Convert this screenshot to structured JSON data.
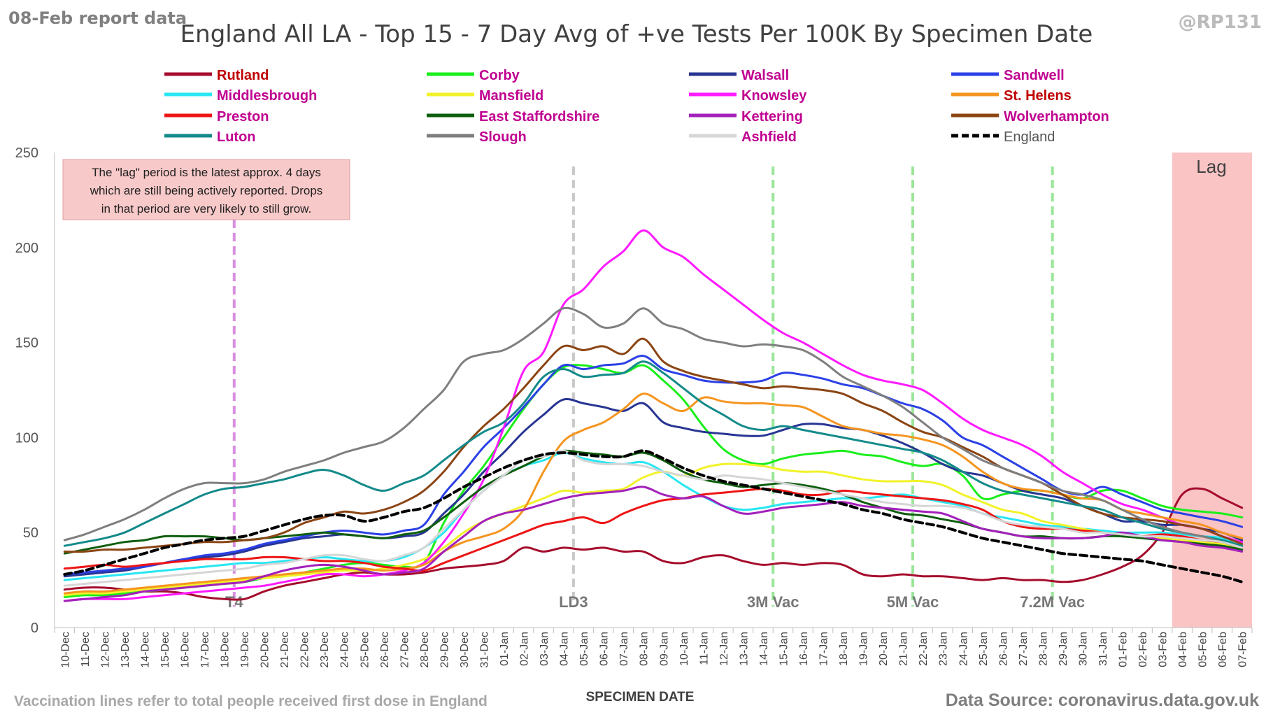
{
  "header": {
    "report_date": "08-Feb report data",
    "handle": "@RP131"
  },
  "footer": {
    "note": "Vaccination lines refer to total people received first dose in England",
    "source": "Data Source: coronavirus.data.gov.uk"
  },
  "infobox": {
    "lines": [
      "The \"lag\" period is the latest approx. 4 days",
      "which are still being actively reported.  Drops",
      "in that period are very likely to still grow."
    ]
  },
  "lag_label": "Lag",
  "chart_data": {
    "type": "line",
    "title": "England All LA - Top 15 - 7 Day Avg of +ve Tests Per 100K By Specimen Date",
    "xlabel": "SPECIMEN DATE",
    "ylabel": "",
    "ylim": [
      0,
      250
    ],
    "yticks": [
      0,
      50,
      100,
      150,
      200,
      250
    ],
    "grid": false,
    "legend_position": "top",
    "categories": [
      "10-Dec",
      "11-Dec",
      "12-Dec",
      "13-Dec",
      "14-Dec",
      "15-Dec",
      "16-Dec",
      "17-Dec",
      "18-Dec",
      "19-Dec",
      "20-Dec",
      "21-Dec",
      "22-Dec",
      "23-Dec",
      "24-Dec",
      "25-Dec",
      "26-Dec",
      "27-Dec",
      "28-Dec",
      "29-Dec",
      "30-Dec",
      "31-Dec",
      "01-Jan",
      "02-Jan",
      "03-Jan",
      "04-Jan",
      "05-Jan",
      "06-Jan",
      "07-Jan",
      "08-Jan",
      "09-Jan",
      "10-Jan",
      "11-Jan",
      "12-Jan",
      "13-Jan",
      "14-Jan",
      "15-Jan",
      "16-Jan",
      "17-Jan",
      "18-Jan",
      "19-Jan",
      "20-Jan",
      "21-Jan",
      "22-Jan",
      "23-Jan",
      "24-Jan",
      "25-Jan",
      "26-Jan",
      "27-Jan",
      "28-Jan",
      "29-Jan",
      "30-Jan",
      "31-Jan",
      "01-Feb",
      "02-Feb",
      "03-Feb",
      "04-Feb",
      "05-Feb",
      "06-Feb",
      "07-Feb"
    ],
    "lag_start": "04-Feb",
    "annotations": [
      {
        "label": "T4",
        "date": "19-Dec",
        "color": "#d98fe0",
        "text_color": "#777777"
      },
      {
        "label": "LD3",
        "date": "05-Jan",
        "color": "#c8c8c8",
        "text_color": "#777777"
      },
      {
        "label": "3M Vac",
        "date": "15-Jan",
        "color": "#99e699",
        "text_color": "#777777"
      },
      {
        "label": "5M Vac",
        "date": "22-Jan",
        "color": "#99e699",
        "text_color": "#777777"
      },
      {
        "label": "7.2M Vac",
        "date": "29-Jan",
        "color": "#99e699",
        "text_color": "#777777"
      }
    ],
    "series": [
      {
        "name": "Rutland",
        "color": "#a50d2d",
        "text_color": "#c00000",
        "values": [
          20,
          21,
          21,
          20,
          19,
          19,
          18,
          16,
          15,
          15,
          19,
          22,
          24,
          26,
          28,
          29,
          28,
          28,
          29,
          31,
          32,
          33,
          35,
          42,
          40,
          42,
          41,
          42,
          40,
          40,
          35,
          34,
          37,
          38,
          35,
          33,
          34,
          33,
          34,
          33,
          28,
          27,
          28,
          27,
          27,
          26,
          25,
          26,
          25,
          25,
          24,
          25,
          28,
          32,
          38,
          50,
          70,
          73,
          68,
          63
        ]
      },
      {
        "name": "Corby",
        "color": "#1aee1a",
        "text_color": "#c00090",
        "values": [
          16,
          17,
          17,
          18,
          19,
          20,
          21,
          22,
          23,
          24,
          26,
          27,
          29,
          31,
          33,
          34,
          33,
          32,
          34,
          55,
          72,
          85,
          100,
          115,
          128,
          137,
          138,
          136,
          134,
          138,
          130,
          120,
          106,
          94,
          88,
          86,
          89,
          91,
          92,
          93,
          91,
          90,
          87,
          85,
          86,
          80,
          68,
          70,
          72,
          72,
          70,
          68,
          72,
          72,
          68,
          64,
          62,
          61,
          60,
          58
        ]
      },
      {
        "name": "Walsall",
        "color": "#283593",
        "text_color": "#c00090",
        "values": [
          27,
          28,
          29,
          30,
          32,
          34,
          36,
          37,
          38,
          40,
          43,
          45,
          47,
          48,
          49,
          48,
          47,
          48,
          50,
          60,
          70,
          82,
          92,
          103,
          112,
          120,
          118,
          116,
          114,
          118,
          108,
          105,
          103,
          102,
          101,
          101,
          104,
          107,
          107,
          105,
          104,
          101,
          97,
          92,
          86,
          82,
          80,
          76,
          72,
          70,
          68,
          64,
          60,
          56,
          56,
          54,
          54,
          52,
          50,
          46
        ]
      },
      {
        "name": "Sandwell",
        "color": "#2b40e6",
        "text_color": "#c00090",
        "values": [
          28,
          29,
          30,
          31,
          32,
          34,
          36,
          38,
          39,
          41,
          44,
          46,
          48,
          50,
          51,
          50,
          49,
          51,
          54,
          70,
          82,
          95,
          105,
          116,
          128,
          138,
          136,
          138,
          139,
          143,
          136,
          133,
          130,
          129,
          129,
          130,
          134,
          133,
          131,
          128,
          126,
          122,
          118,
          115,
          109,
          100,
          96,
          90,
          84,
          78,
          72,
          70,
          74,
          70,
          66,
          62,
          60,
          58,
          56,
          53
        ]
      },
      {
        "name": "Middlesbrough",
        "color": "#28e6f2",
        "text_color": "#c00090",
        "values": [
          25,
          26,
          27,
          28,
          29,
          30,
          31,
          32,
          33,
          34,
          34,
          35,
          36,
          37,
          36,
          35,
          35,
          37,
          42,
          50,
          62,
          72,
          80,
          85,
          88,
          92,
          89,
          87,
          86,
          87,
          82,
          75,
          69,
          64,
          62,
          63,
          65,
          66,
          67,
          68,
          68,
          69,
          70,
          68,
          66,
          64,
          60,
          58,
          56,
          54,
          53,
          52,
          51,
          50,
          50,
          50,
          49,
          48,
          47,
          42
        ]
      },
      {
        "name": "Mansfield",
        "color": "#f2f22a",
        "text_color": "#c00090",
        "values": [
          17,
          18,
          18,
          19,
          20,
          21,
          22,
          23,
          24,
          25,
          26,
          27,
          28,
          29,
          30,
          30,
          31,
          33,
          36,
          42,
          50,
          56,
          60,
          64,
          68,
          72,
          71,
          72,
          73,
          79,
          82,
          80,
          84,
          86,
          86,
          85,
          83,
          82,
          82,
          80,
          78,
          77,
          77,
          77,
          75,
          70,
          66,
          62,
          60,
          56,
          54,
          52,
          50,
          49,
          48,
          47,
          46,
          45,
          44,
          42
        ]
      },
      {
        "name": "Knowsley",
        "color": "#ff1aff",
        "text_color": "#c00090",
        "values": [
          14,
          15,
          15,
          15,
          16,
          17,
          18,
          19,
          20,
          21,
          22,
          24,
          26,
          28,
          28,
          27,
          28,
          30,
          34,
          45,
          60,
          78,
          105,
          135,
          145,
          170,
          178,
          190,
          198,
          209,
          200,
          195,
          186,
          178,
          170,
          162,
          155,
          150,
          144,
          138,
          133,
          130,
          128,
          125,
          118,
          110,
          104,
          100,
          96,
          90,
          82,
          76,
          70,
          65,
          62,
          58,
          54,
          52,
          48,
          45
        ]
      },
      {
        "name": "St. Helens",
        "color": "#f5951f",
        "text_color": "#c00000",
        "values": [
          18,
          19,
          19,
          20,
          21,
          22,
          23,
          24,
          25,
          26,
          27,
          28,
          29,
          30,
          31,
          31,
          30,
          31,
          33,
          40,
          45,
          48,
          52,
          62,
          82,
          98,
          104,
          108,
          115,
          123,
          118,
          114,
          121,
          119,
          118,
          118,
          117,
          116,
          111,
          106,
          104,
          102,
          101,
          99,
          96,
          90,
          82,
          76,
          73,
          72,
          70,
          68,
          67,
          62,
          60,
          58,
          56,
          54,
          50,
          47
        ]
      },
      {
        "name": "Preston",
        "color": "#ee1515",
        "text_color": "#c00090",
        "values": [
          31,
          32,
          33,
          32,
          33,
          34,
          35,
          36,
          36,
          36,
          37,
          37,
          36,
          35,
          35,
          34,
          32,
          31,
          30,
          34,
          38,
          42,
          46,
          50,
          54,
          56,
          58,
          55,
          60,
          64,
          67,
          68,
          70,
          71,
          72,
          73,
          72,
          70,
          70,
          72,
          71,
          70,
          69,
          68,
          67,
          65,
          62,
          56,
          53,
          52,
          52,
          51,
          50,
          48,
          48,
          49,
          48,
          46,
          45,
          43
        ]
      },
      {
        "name": "East Staffordshire",
        "color": "#0e5e0e",
        "text_color": "#c00090",
        "values": [
          39,
          41,
          43,
          45,
          46,
          48,
          48,
          48,
          47,
          46,
          47,
          48,
          49,
          50,
          49,
          48,
          47,
          49,
          51,
          58,
          66,
          74,
          80,
          85,
          90,
          93,
          92,
          91,
          90,
          92,
          88,
          82,
          78,
          76,
          74,
          75,
          76,
          75,
          73,
          70,
          66,
          63,
          60,
          59,
          57,
          55,
          52,
          50,
          48,
          48,
          47,
          47,
          48,
          48,
          47,
          46,
          45,
          44,
          43,
          41
        ]
      },
      {
        "name": "Kettering",
        "color": "#a320bb",
        "text_color": "#c00090",
        "values": [
          14,
          15,
          16,
          17,
          19,
          20,
          21,
          22,
          23,
          24,
          27,
          30,
          32,
          33,
          32,
          30,
          28,
          29,
          31,
          40,
          48,
          56,
          60,
          62,
          65,
          68,
          70,
          71,
          72,
          74,
          70,
          68,
          69,
          64,
          60,
          61,
          63,
          64,
          65,
          66,
          64,
          63,
          62,
          61,
          60,
          56,
          52,
          50,
          48,
          47,
          47,
          47,
          48,
          50,
          48,
          46,
          45,
          43,
          42,
          40
        ]
      },
      {
        "name": "Wolverhampton",
        "color": "#8b4513",
        "text_color": "#c00090",
        "values": [
          40,
          40,
          41,
          41,
          42,
          43,
          44,
          45,
          45,
          46,
          47,
          50,
          55,
          58,
          61,
          60,
          62,
          66,
          72,
          82,
          95,
          106,
          115,
          126,
          138,
          148,
          146,
          148,
          144,
          152,
          140,
          135,
          132,
          130,
          128,
          126,
          127,
          126,
          125,
          123,
          118,
          114,
          108,
          103,
          100,
          95,
          90,
          84,
          80,
          76,
          70,
          64,
          60,
          58,
          57,
          56,
          54,
          52,
          48,
          44
        ]
      },
      {
        "name": "Luton",
        "color": "#148a8a",
        "text_color": "#c00090",
        "values": [
          43,
          45,
          47,
          50,
          55,
          60,
          65,
          70,
          73,
          74,
          76,
          78,
          81,
          83,
          80,
          75,
          72,
          76,
          80,
          88,
          96,
          103,
          108,
          118,
          132,
          136,
          132,
          133,
          134,
          140,
          134,
          126,
          118,
          112,
          106,
          104,
          106,
          104,
          102,
          100,
          98,
          96,
          94,
          92,
          88,
          82,
          76,
          72,
          70,
          68,
          66,
          64,
          62,
          58,
          55,
          52,
          50,
          48,
          46,
          43
        ]
      },
      {
        "name": "Slough",
        "color": "#7f7f7f",
        "text_color": "#c00090",
        "values": [
          46,
          49,
          53,
          57,
          62,
          68,
          73,
          76,
          76,
          76,
          78,
          82,
          85,
          88,
          92,
          95,
          98,
          105,
          115,
          125,
          140,
          144,
          146,
          152,
          160,
          168,
          165,
          158,
          160,
          168,
          160,
          157,
          152,
          150,
          148,
          149,
          148,
          146,
          140,
          132,
          127,
          122,
          116,
          108,
          100,
          94,
          88,
          84,
          80,
          76,
          72,
          70,
          67,
          62,
          57,
          53,
          50,
          48,
          45,
          42
        ]
      },
      {
        "name": "Ashfield",
        "color": "#d6d6d6",
        "text_color": "#c00090",
        "values": [
          22,
          23,
          24,
          25,
          26,
          27,
          28,
          29,
          30,
          31,
          33,
          34,
          36,
          38,
          38,
          36,
          35,
          38,
          42,
          52,
          62,
          72,
          80,
          88,
          90,
          93,
          88,
          86,
          86,
          85,
          82,
          80,
          78,
          80,
          79,
          78,
          76,
          74,
          72,
          70,
          68,
          66,
          65,
          64,
          64,
          63,
          60,
          56,
          54,
          53,
          52,
          50,
          50,
          49,
          48,
          48,
          47,
          46,
          45,
          42
        ]
      },
      {
        "name": "England",
        "color": "#000000",
        "text_color": "#555555",
        "dashed": true,
        "values": [
          28,
          30,
          33,
          36,
          39,
          42,
          44,
          46,
          47,
          48,
          51,
          54,
          57,
          59,
          59,
          56,
          58,
          61,
          63,
          68,
          74,
          79,
          84,
          88,
          91,
          92,
          91,
          90,
          90,
          93,
          89,
          84,
          80,
          77,
          75,
          73,
          71,
          69,
          67,
          65,
          62,
          60,
          57,
          55,
          53,
          50,
          47,
          45,
          43,
          41,
          39,
          38,
          37,
          36,
          35,
          33,
          31,
          29,
          27,
          24
        ]
      }
    ]
  }
}
